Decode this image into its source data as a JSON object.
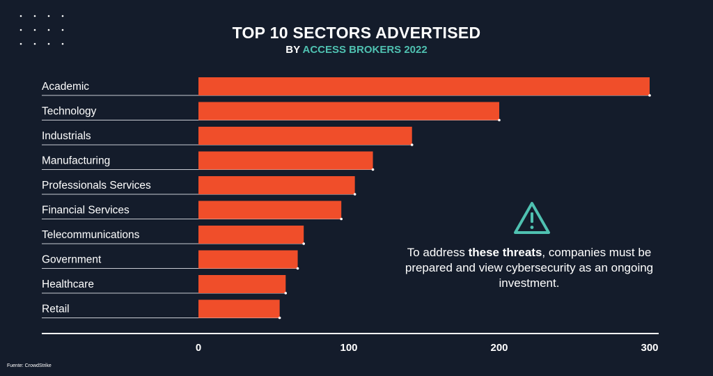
{
  "header": {
    "title": "TOP 10 SECTORS ADVERTISED",
    "subtitle_prefix": "BY",
    "subtitle_accent": "ACCESS BROKERS 2022"
  },
  "note": {
    "text_before": "To address ",
    "text_bold": "these threats",
    "text_after": ", companies must be prepared and view cybersecurity as an ongoing investment."
  },
  "footer": {
    "source": "Fuente: CrowdStrike"
  },
  "icons": {
    "warning": "warning-triangle-icon",
    "decor": "dot-grid-icon"
  },
  "colors": {
    "bar": "#f04e2a",
    "accent": "#4fc1b1",
    "background": "#141c2b"
  },
  "chart_data": {
    "type": "bar",
    "orientation": "horizontal",
    "title": "TOP 10 SECTORS ADVERTISED",
    "subtitle": "BY ACCESS BROKERS 2022",
    "categories": [
      "Academic",
      "Technology",
      "Industrials",
      "Manufacturing",
      "Professionals Services",
      "Financial Services",
      "Telecommunications",
      "Government",
      "Healthcare",
      "Retail"
    ],
    "values": [
      300,
      200,
      142,
      116,
      104,
      95,
      70,
      66,
      58,
      54
    ],
    "xlim": [
      0,
      300
    ],
    "xticks": [
      0,
      100,
      200,
      300
    ],
    "xlabel": "",
    "ylabel": "",
    "grid": false,
    "legend": "none"
  }
}
